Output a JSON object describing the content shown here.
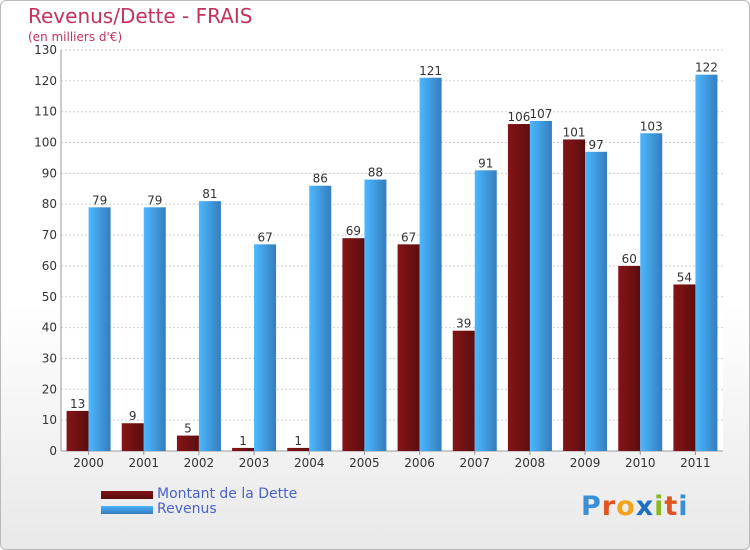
{
  "chart_data": {
    "type": "bar",
    "title": "Revenus/Dette - FRAIS",
    "subtitle": "(en milliers d'€)",
    "categories": [
      "2000",
      "2001",
      "2002",
      "2003",
      "2004",
      "2005",
      "2006",
      "2007",
      "2008",
      "2009",
      "2010",
      "2011"
    ],
    "series": [
      {
        "name": "Montant de la Dette",
        "color": "#6b1012",
        "values": [
          13,
          9,
          5,
          1,
          1,
          69,
          67,
          39,
          106,
          101,
          60,
          54
        ]
      },
      {
        "name": "Revenus",
        "color": "#3d93de",
        "values": [
          79,
          79,
          81,
          67,
          86,
          88,
          121,
          91,
          107,
          97,
          103,
          122
        ]
      }
    ],
    "ylim": [
      0,
      130
    ],
    "yticks": [
      0,
      10,
      20,
      30,
      40,
      50,
      60,
      70,
      80,
      90,
      100,
      110,
      120,
      130
    ],
    "grid": true,
    "legend_position": "bottom-left"
  },
  "logo": {
    "letters": [
      "P",
      "r",
      "o",
      "x",
      "i",
      "t",
      "i"
    ],
    "colors": [
      "#3b8fd6",
      "#e0541f",
      "#f2a31c",
      "#1d6fc2",
      "#8ab81f",
      "#e0541f",
      "#3b8fd6"
    ]
  }
}
